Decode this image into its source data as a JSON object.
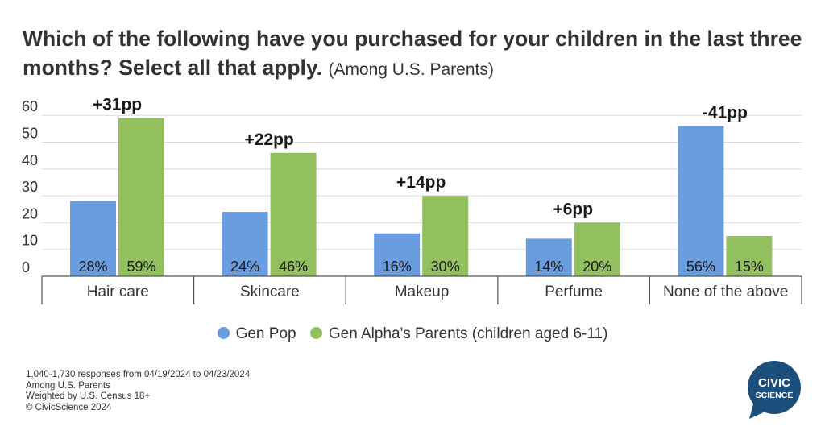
{
  "title": {
    "main": "Which of the following have you purchased for your children in the last three months? Select all that apply.",
    "sub": "(Among U.S. Parents)"
  },
  "colors": {
    "gen_pop": "#6a9de0",
    "gen_alpha": "#92c05f",
    "grid": "#d9d9d9",
    "text": "#333333",
    "logo": "#1c4f7b"
  },
  "chart_data": {
    "type": "bar",
    "categories": [
      "Hair care",
      "Skincare",
      "Makeup",
      "Perfume",
      "None of the above"
    ],
    "series": [
      {
        "name": "Gen Pop",
        "values": [
          28,
          24,
          16,
          14,
          56
        ],
        "labels": [
          "28%",
          "24%",
          "16%",
          "14%",
          "56%"
        ]
      },
      {
        "name": "Gen Alpha's Parents (children aged 6-11)",
        "values": [
          59,
          46,
          30,
          20,
          15
        ],
        "labels": [
          "59%",
          "46%",
          "30%",
          "20%",
          "15%"
        ]
      }
    ],
    "annotations": [
      "+31pp",
      "+22pp",
      "+14pp",
      "+6pp",
      "-41pp"
    ],
    "yticks": [
      0,
      10,
      20,
      30,
      40,
      50,
      60
    ],
    "ylim": [
      0,
      60
    ],
    "grid": true,
    "legend_position": "bottom"
  },
  "legend": {
    "items": [
      {
        "label": "Gen Pop",
        "color": "#6a9de0"
      },
      {
        "label": "Gen Alpha's Parents (children aged 6-11)",
        "color": "#92c05f"
      }
    ]
  },
  "footer": {
    "lines": [
      "1,040-1,730 responses from 04/19/2024 to 04/23/2024",
      "Among U.S. Parents",
      "Weighted by U.S. Census 18+",
      "© CivicScience 2024"
    ]
  },
  "logo": {
    "line1": "CIVIC",
    "line2": "SCIENCE"
  }
}
